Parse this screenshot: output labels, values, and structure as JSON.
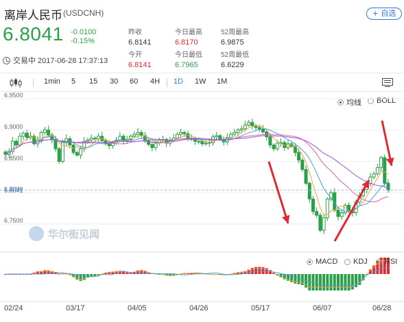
{
  "header": {
    "title": "离岸人民币",
    "symbol": "(USDCNH)",
    "add_label": "+ 自选",
    "price": "6.8041",
    "change_abs": "-0.0100",
    "change_pct": "-0.15%",
    "status": "交易中 2017-06-28 17:37:13"
  },
  "stats": [
    {
      "label": "昨收",
      "value": "6.8141",
      "color": "#333333"
    },
    {
      "label": "今日最高",
      "value": "6.8170",
      "color": "#e0292f"
    },
    {
      "label": "52周最高",
      "value": "6.9875",
      "color": "#333333"
    },
    {
      "label": "今开",
      "value": "6.8141",
      "color": "#e0292f"
    },
    {
      "label": "今日最低",
      "value": "6.7965",
      "color": "#2aa046"
    },
    {
      "label": "52周最低",
      "value": "6.6229",
      "color": "#333333"
    }
  ],
  "toolbar": {
    "intervals": [
      "1min",
      "5",
      "15",
      "30",
      "60",
      "4H",
      "1D",
      "1W",
      "1M"
    ],
    "active": "1D"
  },
  "chart_options": {
    "ma_label": "均线",
    "boll_label": "BOLL",
    "macd_label": "MACD",
    "kdj_label": "KDJ",
    "rsi_label": "RSI"
  },
  "watermark": "华尔街见闻",
  "chart_data": {
    "type": "candlestick",
    "y_ticks": [
      "6.9500",
      "6.9000",
      "6.8500",
      "6.8000",
      "6.7500"
    ],
    "last_price_label": "6.8041",
    "x_ticks": [
      "02/24",
      "03/17",
      "04/05",
      "04/26",
      "05/17",
      "06/07",
      "06/28"
    ],
    "ylim": [
      6.73,
      6.95
    ],
    "colors": {
      "up": "#2aa046",
      "down": "#2aa046",
      "ma5": "#f2a33a",
      "ma10": "#3fa0e0",
      "ma20": "#e05aa6",
      "ma30": "#9b55d6",
      "annotation": "#e0292f"
    },
    "closes": [
      6.861,
      6.866,
      6.882,
      6.876,
      6.89,
      6.895,
      6.888,
      6.89,
      6.878,
      6.884,
      6.896,
      6.9,
      6.892,
      6.885,
      6.87,
      6.85,
      6.88,
      6.886,
      6.876,
      6.864,
      6.86,
      6.87,
      6.882,
      6.884,
      6.887,
      6.886,
      6.89,
      6.883,
      6.878,
      6.875,
      6.88,
      6.884,
      6.89,
      6.883,
      6.885,
      6.89,
      6.893,
      6.896,
      6.891,
      6.883,
      6.877,
      6.872,
      6.879,
      6.884,
      6.885,
      6.879,
      6.884,
      6.887,
      6.893,
      6.896,
      6.894,
      6.886,
      6.885,
      6.882,
      6.882,
      6.878,
      6.879,
      6.88,
      6.889,
      6.891,
      6.885,
      6.881,
      6.888,
      6.893,
      6.896,
      6.9,
      6.902,
      6.908,
      6.912,
      6.907,
      6.904,
      6.901,
      6.897,
      6.889,
      6.876,
      6.87,
      6.879,
      6.88,
      6.872,
      6.878,
      6.874,
      6.864,
      6.852,
      6.837,
      6.815,
      6.79,
      6.77,
      6.764,
      6.74,
      6.76,
      6.79,
      6.8,
      6.772,
      6.762,
      6.768,
      6.78,
      6.77,
      6.768,
      6.785,
      6.795,
      6.805,
      6.815,
      6.825,
      6.83,
      6.84,
      6.856,
      6.815,
      6.804
    ],
    "annotations": [
      "down-arrow-may",
      "up-arrow-june",
      "down-arrow-late-june"
    ]
  }
}
